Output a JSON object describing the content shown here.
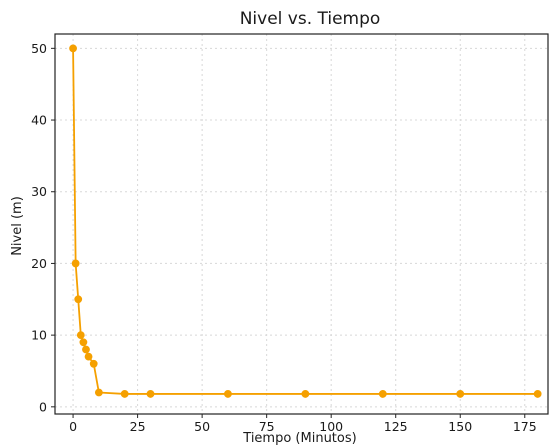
{
  "chart_data": {
    "type": "line",
    "title": "Nivel vs. Tiempo",
    "xlabel": "Tiempo (Minutos)",
    "ylabel": "Nivel (m)",
    "x": [
      0,
      1,
      2,
      3,
      4,
      5,
      6,
      8,
      10,
      20,
      30,
      60,
      90,
      120,
      150,
      180
    ],
    "series": [
      {
        "values": [
          50,
          20,
          15,
          10,
          9,
          8,
          7,
          6,
          2,
          1.8,
          1.8,
          1.8,
          1.8,
          1.8,
          1.8,
          1.8
        ],
        "color": "#f5a000"
      }
    ],
    "xlim": [
      -7,
      184
    ],
    "ylim": [
      -1,
      52
    ],
    "xticks": [
      0,
      25,
      50,
      75,
      100,
      125,
      150,
      175
    ],
    "yticks": [
      0,
      10,
      20,
      30,
      40,
      50
    ],
    "grid": true,
    "marker": "circle"
  }
}
